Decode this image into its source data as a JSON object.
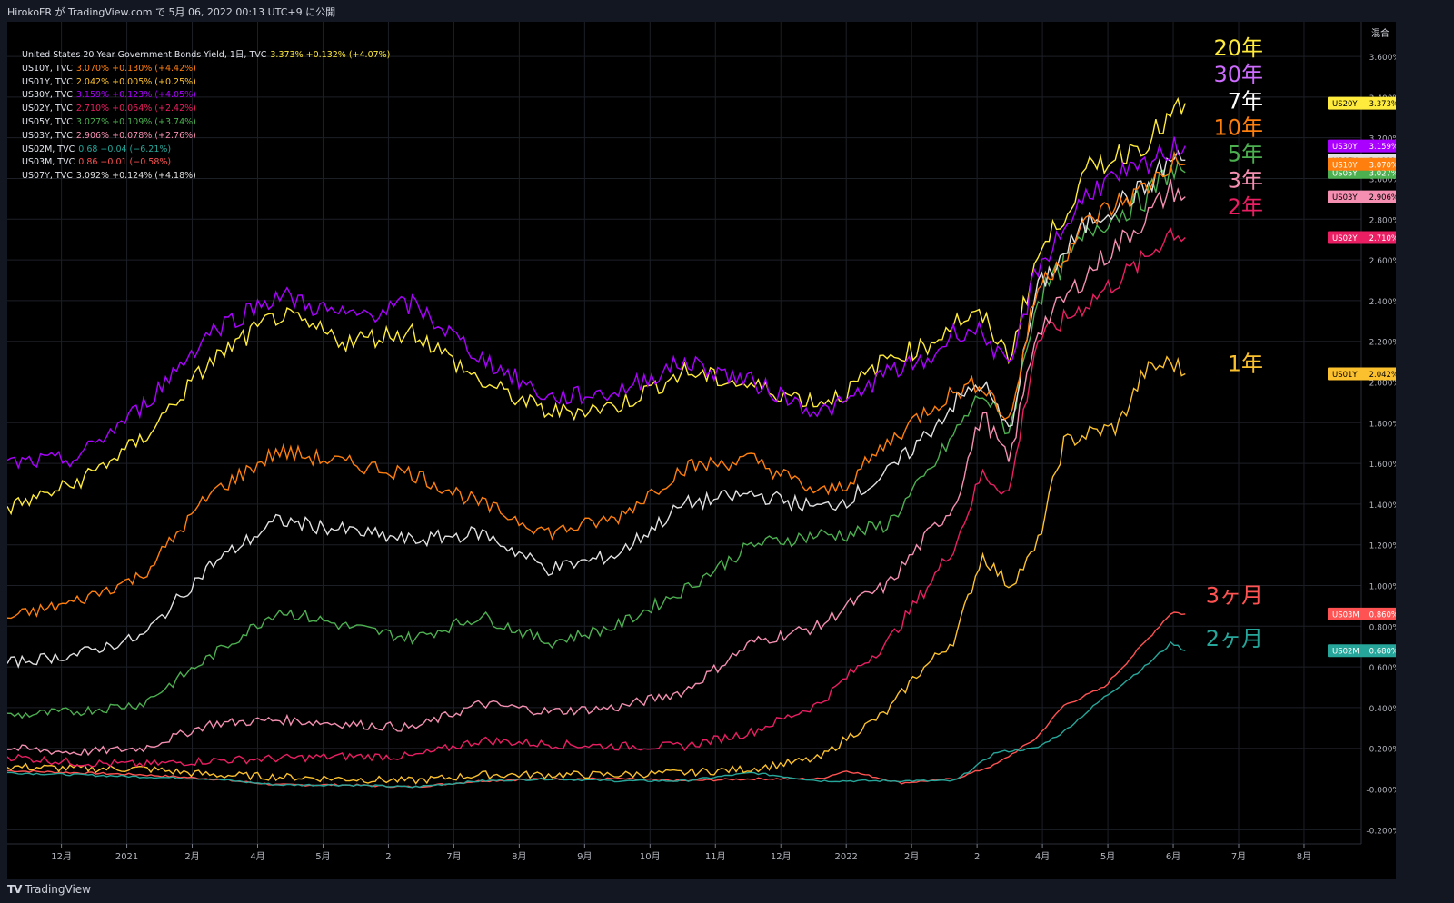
{
  "header": {
    "publish_info": "HirokoFR が TradingView.com で 5月 06, 2022 00:13 UTC+9 に公開"
  },
  "footer": {
    "brand": "TradingView"
  },
  "scale_mode": "混合",
  "legend": [
    {
      "name": "United States 20 Year Government Bonds Yield, 1日, TVC",
      "value": "3.373%",
      "change": "+0.132% (+4.07%)",
      "color": "#ffeb3b"
    },
    {
      "name": "US10Y, TVC",
      "value": "3.070%",
      "change": "+0.130% (+4.42%)",
      "color": "#ff7f0e"
    },
    {
      "name": "US01Y, TVC",
      "value": "2.042%",
      "change": "+0.005% (+0.25%)",
      "color": "#fbc02d"
    },
    {
      "name": "US30Y, TVC",
      "value": "3.159%",
      "change": "+0.123% (+4.05%)",
      "color": "#aa00ff"
    },
    {
      "name": "US02Y, TVC",
      "value": "2.710%",
      "change": "+0.064% (+2.42%)",
      "color": "#e91e63"
    },
    {
      "name": "US05Y, TVC",
      "value": "3.027%",
      "change": "+0.109% (+3.74%)",
      "color": "#4caf50"
    },
    {
      "name": "US03Y, TVC",
      "value": "2.906%",
      "change": "+0.078% (+2.76%)",
      "color": "#f48fb1"
    },
    {
      "name": "US02M, TVC",
      "value": "0.68",
      "change": "−0.04 (−6.21%)",
      "color": "#26a69a"
    },
    {
      "name": "US03M, TVC",
      "value": "0.86",
      "change": "−0.01 (−0.58%)",
      "color": "#ff5252"
    },
    {
      "name": "US07Y, TVC",
      "value": "3.092%",
      "change": "+0.124% (+4.18%)",
      "color": "#e0e0e0"
    }
  ],
  "annotations": [
    {
      "text": "20年",
      "color": "#ffeb3b",
      "y": 3.64
    },
    {
      "text": "30年",
      "color": "#ce6bff",
      "y": 3.51
    },
    {
      "text": "7年",
      "color": "#ffffff",
      "y": 3.38
    },
    {
      "text": "10年",
      "color": "#ff7f0e",
      "y": 3.25
    },
    {
      "text": "5年",
      "color": "#4caf50",
      "y": 3.12
    },
    {
      "text": "3年",
      "color": "#f48fb1",
      "y": 2.99
    },
    {
      "text": "2年",
      "color": "#e91e63",
      "y": 2.86
    },
    {
      "text": "1年",
      "color": "#fbc02d",
      "y": 2.09
    },
    {
      "text": "3ヶ月",
      "color": "#ff5252",
      "y": 0.95
    },
    {
      "text": "2ヶ月",
      "color": "#26a69a",
      "y": 0.74
    }
  ],
  "chart_data": {
    "type": "line",
    "title": "United States 20 Year Government Bonds Yield, 1日, TVC",
    "x_ticks": [
      "12月",
      "2021",
      "2月",
      "4月",
      "5月",
      "2",
      "7月",
      "8月",
      "9月",
      "10月",
      "11月",
      "12月",
      "2022",
      "2月",
      "2",
      "4月",
      "5月",
      "6月",
      "7月",
      "8月"
    ],
    "y_ticks": [
      "3.600%",
      "3.400%",
      "3.200%",
      "3.000%",
      "2.800%",
      "2.600%",
      "2.400%",
      "2.200%",
      "2.000%",
      "1.800%",
      "1.600%",
      "1.400%",
      "1.200%",
      "1.000%",
      "0.800%",
      "0.600%",
      "0.400%",
      "0.200%",
      "-0.000%",
      "-0.200%"
    ],
    "ylim": [
      -0.27,
      3.77
    ],
    "series": [
      {
        "name": "US03M",
        "color": "#ff5252",
        "label": "US03M",
        "last": "0.860%",
        "keys": [
          [
            0,
            0.09
          ],
          [
            0.05,
            0.08
          ],
          [
            0.1,
            0.07
          ],
          [
            0.15,
            0.05
          ],
          [
            0.2,
            0.02
          ],
          [
            0.25,
            0.02
          ],
          [
            0.3,
            0.01
          ],
          [
            0.35,
            0.04
          ],
          [
            0.4,
            0.05
          ],
          [
            0.45,
            0.05
          ],
          [
            0.5,
            0.04
          ],
          [
            0.55,
            0.05
          ],
          [
            0.6,
            0.05
          ],
          [
            0.62,
            0.09
          ],
          [
            0.66,
            0.03
          ],
          [
            0.7,
            0.05
          ],
          [
            0.73,
            0.12
          ],
          [
            0.76,
            0.25
          ],
          [
            0.78,
            0.41
          ],
          [
            0.81,
            0.5
          ],
          [
            0.84,
            0.72
          ],
          [
            0.86,
            0.87
          ],
          [
            0.87,
            0.86
          ]
        ]
      },
      {
        "name": "US02M",
        "color": "#26a69a",
        "label": "US02M",
        "last": "0.680%",
        "keys": [
          [
            0,
            0.08
          ],
          [
            0.05,
            0.07
          ],
          [
            0.1,
            0.06
          ],
          [
            0.15,
            0.05
          ],
          [
            0.2,
            0.02
          ],
          [
            0.25,
            0.02
          ],
          [
            0.3,
            0.01
          ],
          [
            0.35,
            0.04
          ],
          [
            0.4,
            0.05
          ],
          [
            0.45,
            0.04
          ],
          [
            0.5,
            0.04
          ],
          [
            0.55,
            0.08
          ],
          [
            0.6,
            0.04
          ],
          [
            0.65,
            0.04
          ],
          [
            0.7,
            0.04
          ],
          [
            0.73,
            0.18
          ],
          [
            0.76,
            0.2
          ],
          [
            0.78,
            0.28
          ],
          [
            0.81,
            0.45
          ],
          [
            0.84,
            0.6
          ],
          [
            0.86,
            0.72
          ],
          [
            0.87,
            0.68
          ]
        ]
      },
      {
        "name": "US01Y",
        "color": "#fbc02d",
        "label": "US01Y",
        "last": "2.042%",
        "keys": [
          [
            0,
            0.11
          ],
          [
            0.05,
            0.1
          ],
          [
            0.1,
            0.1
          ],
          [
            0.15,
            0.07
          ],
          [
            0.2,
            0.06
          ],
          [
            0.25,
            0.05
          ],
          [
            0.3,
            0.04
          ],
          [
            0.35,
            0.07
          ],
          [
            0.4,
            0.07
          ],
          [
            0.45,
            0.07
          ],
          [
            0.5,
            0.08
          ],
          [
            0.55,
            0.1
          ],
          [
            0.6,
            0.15
          ],
          [
            0.62,
            0.25
          ],
          [
            0.65,
            0.38
          ],
          [
            0.67,
            0.55
          ],
          [
            0.7,
            0.74
          ],
          [
            0.72,
            1.15
          ],
          [
            0.74,
            1.0
          ],
          [
            0.76,
            1.18
          ],
          [
            0.78,
            1.7
          ],
          [
            0.8,
            1.75
          ],
          [
            0.82,
            1.78
          ],
          [
            0.84,
            2.05
          ],
          [
            0.86,
            2.1
          ],
          [
            0.87,
            2.04
          ]
        ]
      },
      {
        "name": "US02Y",
        "color": "#e91e63",
        "label": "US02Y",
        "last": "2.710%",
        "keys": [
          [
            0,
            0.16
          ],
          [
            0.05,
            0.13
          ],
          [
            0.1,
            0.12
          ],
          [
            0.15,
            0.14
          ],
          [
            0.2,
            0.15
          ],
          [
            0.25,
            0.16
          ],
          [
            0.3,
            0.16
          ],
          [
            0.35,
            0.24
          ],
          [
            0.4,
            0.22
          ],
          [
            0.45,
            0.21
          ],
          [
            0.5,
            0.21
          ],
          [
            0.55,
            0.28
          ],
          [
            0.6,
            0.42
          ],
          [
            0.62,
            0.55
          ],
          [
            0.65,
            0.72
          ],
          [
            0.68,
            1.0
          ],
          [
            0.7,
            1.2
          ],
          [
            0.72,
            1.55
          ],
          [
            0.74,
            1.45
          ],
          [
            0.76,
            2.2
          ],
          [
            0.8,
            2.4
          ],
          [
            0.84,
            2.6
          ],
          [
            0.86,
            2.75
          ],
          [
            0.87,
            2.71
          ]
        ]
      },
      {
        "name": "US03Y",
        "color": "#f48fb1",
        "label": "US03Y",
        "last": "2.906%",
        "keys": [
          [
            0,
            0.2
          ],
          [
            0.05,
            0.18
          ],
          [
            0.1,
            0.2
          ],
          [
            0.15,
            0.32
          ],
          [
            0.2,
            0.34
          ],
          [
            0.25,
            0.32
          ],
          [
            0.3,
            0.3
          ],
          [
            0.35,
            0.42
          ],
          [
            0.4,
            0.38
          ],
          [
            0.45,
            0.4
          ],
          [
            0.5,
            0.48
          ],
          [
            0.55,
            0.72
          ],
          [
            0.6,
            0.8
          ],
          [
            0.62,
            0.9
          ],
          [
            0.65,
            1.0
          ],
          [
            0.68,
            1.25
          ],
          [
            0.7,
            1.4
          ],
          [
            0.72,
            1.85
          ],
          [
            0.74,
            1.6
          ],
          [
            0.76,
            2.25
          ],
          [
            0.8,
            2.55
          ],
          [
            0.84,
            2.8
          ],
          [
            0.86,
            2.95
          ],
          [
            0.87,
            2.91
          ]
        ]
      },
      {
        "name": "US05Y",
        "color": "#4caf50",
        "label": "US05Y",
        "last": "3.027%",
        "keys": [
          [
            0,
            0.36
          ],
          [
            0.05,
            0.38
          ],
          [
            0.1,
            0.42
          ],
          [
            0.15,
            0.65
          ],
          [
            0.2,
            0.88
          ],
          [
            0.25,
            0.8
          ],
          [
            0.3,
            0.74
          ],
          [
            0.35,
            0.85
          ],
          [
            0.4,
            0.72
          ],
          [
            0.45,
            0.8
          ],
          [
            0.5,
            0.98
          ],
          [
            0.55,
            1.2
          ],
          [
            0.6,
            1.25
          ],
          [
            0.62,
            1.25
          ],
          [
            0.65,
            1.3
          ],
          [
            0.68,
            1.55
          ],
          [
            0.7,
            1.75
          ],
          [
            0.72,
            1.95
          ],
          [
            0.74,
            1.75
          ],
          [
            0.76,
            2.4
          ],
          [
            0.8,
            2.75
          ],
          [
            0.84,
            2.9
          ],
          [
            0.86,
            3.05
          ],
          [
            0.87,
            3.03
          ]
        ]
      },
      {
        "name": "US07Y",
        "color": "#e0e0e0",
        "label": "US07Y",
        "last": "3.092%",
        "keys": [
          [
            0,
            0.62
          ],
          [
            0.05,
            0.66
          ],
          [
            0.1,
            0.75
          ],
          [
            0.15,
            1.1
          ],
          [
            0.2,
            1.32
          ],
          [
            0.25,
            1.27
          ],
          [
            0.3,
            1.22
          ],
          [
            0.35,
            1.26
          ],
          [
            0.4,
            1.08
          ],
          [
            0.45,
            1.15
          ],
          [
            0.5,
            1.4
          ],
          [
            0.55,
            1.45
          ],
          [
            0.6,
            1.38
          ],
          [
            0.62,
            1.42
          ],
          [
            0.65,
            1.55
          ],
          [
            0.68,
            1.75
          ],
          [
            0.7,
            1.9
          ],
          [
            0.72,
            2.0
          ],
          [
            0.74,
            1.75
          ],
          [
            0.76,
            2.45
          ],
          [
            0.8,
            2.8
          ],
          [
            0.84,
            2.95
          ],
          [
            0.86,
            3.1
          ],
          [
            0.87,
            3.09
          ]
        ]
      },
      {
        "name": "US10Y",
        "color": "#ff7f0e",
        "label": "US10Y",
        "last": "3.070%",
        "keys": [
          [
            0,
            0.84
          ],
          [
            0.05,
            0.92
          ],
          [
            0.1,
            1.05
          ],
          [
            0.15,
            1.45
          ],
          [
            0.2,
            1.66
          ],
          [
            0.25,
            1.6
          ],
          [
            0.3,
            1.55
          ],
          [
            0.35,
            1.4
          ],
          [
            0.4,
            1.26
          ],
          [
            0.45,
            1.33
          ],
          [
            0.5,
            1.58
          ],
          [
            0.55,
            1.62
          ],
          [
            0.6,
            1.45
          ],
          [
            0.62,
            1.5
          ],
          [
            0.65,
            1.7
          ],
          [
            0.68,
            1.87
          ],
          [
            0.7,
            1.95
          ],
          [
            0.72,
            2.0
          ],
          [
            0.74,
            1.8
          ],
          [
            0.76,
            2.45
          ],
          [
            0.8,
            2.8
          ],
          [
            0.84,
            2.95
          ],
          [
            0.86,
            3.08
          ],
          [
            0.87,
            3.07
          ]
        ]
      },
      {
        "name": "US20Y",
        "color": "#ffeb3b",
        "label": "US20Y",
        "last": "3.373%",
        "keys": [
          [
            0,
            1.38
          ],
          [
            0.05,
            1.5
          ],
          [
            0.1,
            1.72
          ],
          [
            0.15,
            2.1
          ],
          [
            0.2,
            2.33
          ],
          [
            0.25,
            2.2
          ],
          [
            0.3,
            2.25
          ],
          [
            0.35,
            2.0
          ],
          [
            0.4,
            1.85
          ],
          [
            0.45,
            1.88
          ],
          [
            0.5,
            2.05
          ],
          [
            0.55,
            1.98
          ],
          [
            0.6,
            1.9
          ],
          [
            0.62,
            1.95
          ],
          [
            0.65,
            2.12
          ],
          [
            0.68,
            2.18
          ],
          [
            0.7,
            2.3
          ],
          [
            0.72,
            2.32
          ],
          [
            0.74,
            2.12
          ],
          [
            0.76,
            2.6
          ],
          [
            0.8,
            3.05
          ],
          [
            0.84,
            3.18
          ],
          [
            0.86,
            3.3
          ],
          [
            0.87,
            3.37
          ]
        ]
      },
      {
        "name": "US30Y",
        "color": "#aa00ff",
        "label": "US30Y",
        "last": "3.159%",
        "keys": [
          [
            0,
            1.6
          ],
          [
            0.05,
            1.62
          ],
          [
            0.1,
            1.88
          ],
          [
            0.15,
            2.25
          ],
          [
            0.2,
            2.43
          ],
          [
            0.25,
            2.32
          ],
          [
            0.3,
            2.38
          ],
          [
            0.35,
            2.12
          ],
          [
            0.4,
            1.92
          ],
          [
            0.45,
            1.95
          ],
          [
            0.5,
            2.1
          ],
          [
            0.55,
            2.0
          ],
          [
            0.6,
            1.85
          ],
          [
            0.62,
            1.9
          ],
          [
            0.65,
            2.05
          ],
          [
            0.68,
            2.1
          ],
          [
            0.7,
            2.25
          ],
          [
            0.72,
            2.25
          ],
          [
            0.74,
            2.05
          ],
          [
            0.76,
            2.55
          ],
          [
            0.8,
            2.95
          ],
          [
            0.84,
            3.05
          ],
          [
            0.86,
            3.15
          ],
          [
            0.87,
            3.16
          ]
        ]
      }
    ]
  }
}
